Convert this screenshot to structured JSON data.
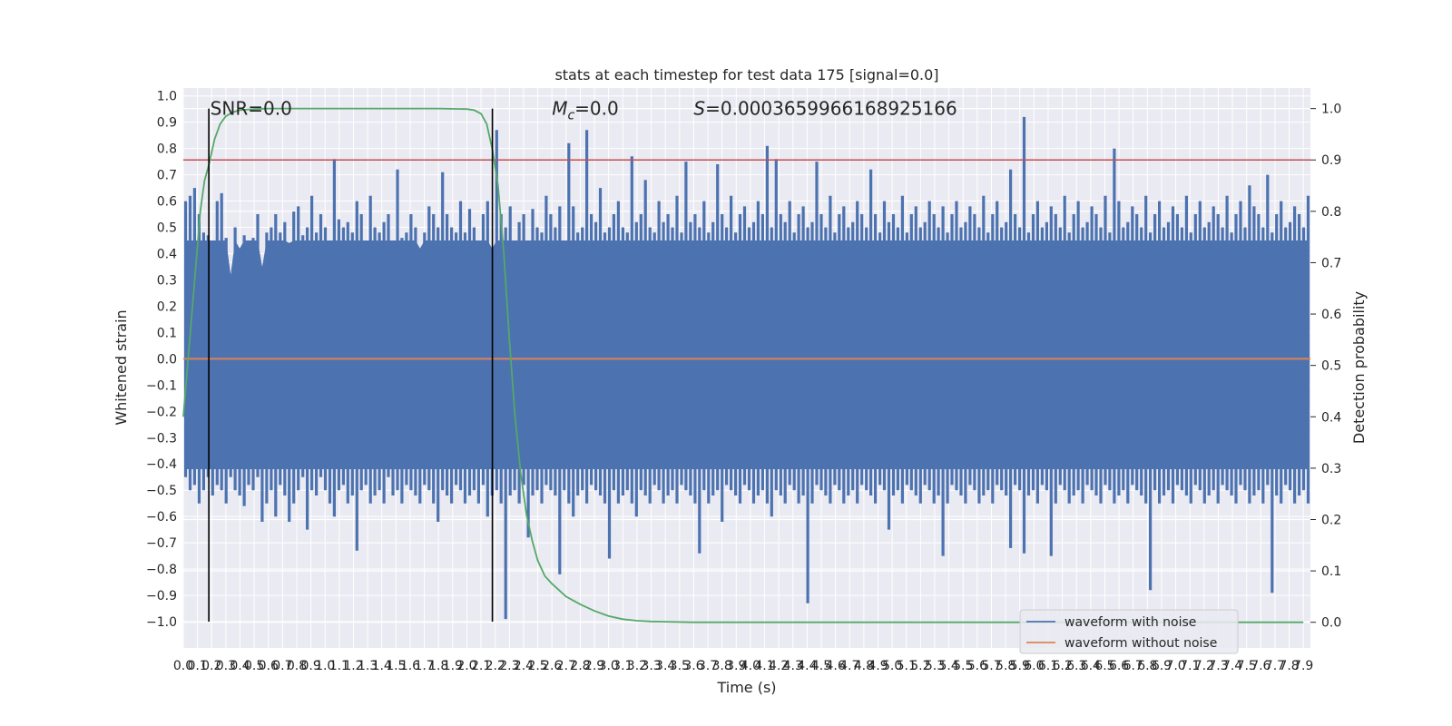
{
  "chart_data": {
    "type": "line",
    "title": "stats at each timestep for test data 175 [signal=0.0]",
    "xlabel": "Time (s)",
    "ylabel": "Whitened strain",
    "y2label": "Detection probability",
    "xlim": [
      0.0,
      7.95
    ],
    "ylim": [
      -1.1,
      1.03
    ],
    "y2lim": [
      -0.05,
      1.04
    ],
    "x_tick_step": 0.1,
    "x_tick_labels": [
      "0.0",
      "0.1",
      "0.2",
      "0.3",
      "0.4",
      "0.5",
      "0.6",
      "0.7",
      "0.8",
      "0.9",
      "1.0",
      "1.1",
      "1.2",
      "1.3",
      "1.4",
      "1.5",
      "1.6",
      "1.7",
      "1.8",
      "1.9",
      "2.0",
      "2.1",
      "2.2",
      "2.3",
      "2.4",
      "2.5",
      "2.6",
      "2.7",
      "2.8",
      "2.9",
      "3.0",
      "3.1",
      "3.2",
      "3.3",
      "3.4",
      "3.5",
      "3.6",
      "3.7",
      "3.8",
      "3.9",
      "4.0",
      "4.1",
      "4.2",
      "4.3",
      "4.4",
      "4.5",
      "4.6",
      "4.7",
      "4.8",
      "4.9",
      "5.0",
      "5.1",
      "5.2",
      "5.3",
      "5.4",
      "5.5",
      "5.6",
      "5.7",
      "5.8",
      "5.9",
      "6.0",
      "6.1",
      "6.2",
      "6.3",
      "6.4",
      "6.5",
      "6.6",
      "6.7",
      "6.8",
      "6.9",
      "7.0",
      "7.1",
      "7.2",
      "7.3",
      "7.4",
      "7.5",
      "7.6",
      "7.7",
      "7.8",
      "7.9"
    ],
    "y_tick_labels": [
      "1.0",
      "0.9",
      "0.8",
      "0.7",
      "0.6",
      "0.5",
      "0.4",
      "0.3",
      "0.2",
      "0.1",
      "0.0",
      "−0.1",
      "−0.2",
      "−0.3",
      "−0.4",
      "−0.5",
      "−0.6",
      "−0.7",
      "−0.8",
      "−0.9",
      "−1.0"
    ],
    "y_tick_values": [
      1.0,
      0.9,
      0.8,
      0.7,
      0.6,
      0.5,
      0.4,
      0.3,
      0.2,
      0.1,
      0.0,
      -0.1,
      -0.2,
      -0.3,
      -0.4,
      -0.5,
      -0.6,
      -0.7,
      -0.8,
      -0.9,
      -1.0
    ],
    "y2_tick_labels": [
      "1.0",
      "0.9",
      "0.8",
      "0.7",
      "0.6",
      "0.5",
      "0.4",
      "0.3",
      "0.2",
      "0.1",
      "0.0"
    ],
    "y2_tick_values": [
      1.0,
      0.9,
      0.8,
      0.7,
      0.6,
      0.5,
      0.4,
      0.3,
      0.2,
      0.1,
      0.0
    ],
    "grid": true,
    "legend_position": "lower-right",
    "annotations": [
      {
        "text": "SNR=0.0",
        "x": 0.19,
        "y": 0.955
      },
      {
        "text": "Mc=0.0",
        "x": 2.6,
        "y": 0.955
      },
      {
        "text": "S=0.0003659966168925166",
        "x": 3.6,
        "y": 0.955
      }
    ],
    "vertical_lines": [
      0.18,
      2.18
    ],
    "threshold_line": {
      "y2": 0.9,
      "color": "#c44e52"
    },
    "series": [
      {
        "name": "waveform with noise",
        "color": "#4c72b0",
        "axis": "left",
        "sample_step": 0.005,
        "envelope_upper": [
          0.6,
          0.62,
          0.65,
          0.55,
          0.48,
          0.47,
          0.45,
          0.6,
          0.63,
          0.46,
          0.32,
          0.5,
          0.42,
          0.47,
          0.45,
          0.46,
          0.55,
          0.35,
          0.48,
          0.5,
          0.55,
          0.48,
          0.52,
          0.44,
          0.56,
          0.58,
          0.47,
          0.5,
          0.62,
          0.48,
          0.55,
          0.5,
          0.45,
          0.76,
          0.53,
          0.5,
          0.52,
          0.48,
          0.6,
          0.55,
          0.45,
          0.62,
          0.5,
          0.48,
          0.52,
          0.55,
          0.45,
          0.72,
          0.46,
          0.48,
          0.55,
          0.5,
          0.42,
          0.48,
          0.58,
          0.55,
          0.5,
          0.71,
          0.55,
          0.5,
          0.48,
          0.6,
          0.48,
          0.57,
          0.5,
          0.45,
          0.55,
          0.6,
          0.42,
          0.87,
          0.55,
          0.5,
          0.58,
          0.45,
          0.52,
          0.55,
          0.45,
          0.57,
          0.5,
          0.48,
          0.62,
          0.55,
          0.5,
          0.58,
          0.45,
          0.82,
          0.58,
          0.48,
          0.5,
          0.87,
          0.55,
          0.52,
          0.65,
          0.48,
          0.5,
          0.55,
          0.6,
          0.5,
          0.48,
          0.77,
          0.52,
          0.55,
          0.68,
          0.5,
          0.48,
          0.6,
          0.52,
          0.55,
          0.5,
          0.62,
          0.48,
          0.75,
          0.52,
          0.55,
          0.5,
          0.6,
          0.48,
          0.52,
          0.74,
          0.55,
          0.5,
          0.62,
          0.48,
          0.55,
          0.58,
          0.5,
          0.52,
          0.6,
          0.55,
          0.81,
          0.5,
          0.76,
          0.55,
          0.52,
          0.6,
          0.48,
          0.55,
          0.58,
          0.5,
          0.52,
          0.75,
          0.55,
          0.5,
          0.62,
          0.48,
          0.55,
          0.58,
          0.5,
          0.52,
          0.6,
          0.55,
          0.5,
          0.72,
          0.55,
          0.48,
          0.6,
          0.52,
          0.55,
          0.5,
          0.62,
          0.48,
          0.55,
          0.58,
          0.5,
          0.52,
          0.6,
          0.55,
          0.5,
          0.58,
          0.48,
          0.55,
          0.6,
          0.5,
          0.52,
          0.58,
          0.55,
          0.5,
          0.62,
          0.48,
          0.55,
          0.6,
          0.5,
          0.52,
          0.72,
          0.55,
          0.5,
          0.92,
          0.48,
          0.55,
          0.6,
          0.5,
          0.52,
          0.58,
          0.55,
          0.5,
          0.62,
          0.48,
          0.55,
          0.6,
          0.5,
          0.52,
          0.58,
          0.55,
          0.5,
          0.62,
          0.48,
          0.8,
          0.6,
          0.5,
          0.52,
          0.58,
          0.55,
          0.5,
          0.62,
          0.48,
          0.55,
          0.6,
          0.5,
          0.52,
          0.58,
          0.55,
          0.5,
          0.62,
          0.48,
          0.55,
          0.6,
          0.5,
          0.52,
          0.58,
          0.55,
          0.5,
          0.62,
          0.48,
          0.55,
          0.6,
          0.5,
          0.66,
          0.58,
          0.55,
          0.5,
          0.7,
          0.48,
          0.55,
          0.6,
          0.5,
          0.52,
          0.58,
          0.55,
          0.5,
          0.62
        ],
        "envelope_lower": [
          -0.45,
          -0.5,
          -0.48,
          -0.55,
          -0.5,
          -0.45,
          -0.52,
          -0.48,
          -0.5,
          -0.55,
          -0.45,
          -0.5,
          -0.52,
          -0.56,
          -0.48,
          -0.5,
          -0.45,
          -0.62,
          -0.55,
          -0.5,
          -0.6,
          -0.48,
          -0.52,
          -0.62,
          -0.55,
          -0.5,
          -0.45,
          -0.65,
          -0.5,
          -0.52,
          -0.45,
          -0.5,
          -0.55,
          -0.6,
          -0.5,
          -0.48,
          -0.55,
          -0.52,
          -0.73,
          -0.5,
          -0.48,
          -0.55,
          -0.52,
          -0.5,
          -0.55,
          -0.45,
          -0.52,
          -0.5,
          -0.55,
          -0.48,
          -0.5,
          -0.52,
          -0.55,
          -0.48,
          -0.5,
          -0.55,
          -0.62,
          -0.5,
          -0.52,
          -0.55,
          -0.48,
          -0.5,
          -0.55,
          -0.52,
          -0.5,
          -0.55,
          -0.48,
          -0.6,
          -0.52,
          -0.5,
          -0.55,
          -0.99,
          -0.52,
          -0.5,
          -0.55,
          -0.48,
          -0.68,
          -0.52,
          -0.5,
          -0.55,
          -0.48,
          -0.5,
          -0.52,
          -0.82,
          -0.5,
          -0.55,
          -0.6,
          -0.52,
          -0.5,
          -0.55,
          -0.48,
          -0.5,
          -0.52,
          -0.55,
          -0.76,
          -0.5,
          -0.55,
          -0.52,
          -0.5,
          -0.55,
          -0.6,
          -0.5,
          -0.52,
          -0.55,
          -0.48,
          -0.5,
          -0.55,
          -0.52,
          -0.5,
          -0.55,
          -0.48,
          -0.5,
          -0.52,
          -0.55,
          -0.74,
          -0.5,
          -0.55,
          -0.52,
          -0.5,
          -0.62,
          -0.48,
          -0.5,
          -0.52,
          -0.55,
          -0.48,
          -0.5,
          -0.55,
          -0.52,
          -0.5,
          -0.55,
          -0.6,
          -0.5,
          -0.52,
          -0.55,
          -0.48,
          -0.5,
          -0.55,
          -0.52,
          -0.93,
          -0.55,
          -0.48,
          -0.5,
          -0.52,
          -0.55,
          -0.48,
          -0.5,
          -0.55,
          -0.52,
          -0.5,
          -0.55,
          -0.48,
          -0.5,
          -0.52,
          -0.55,
          -0.48,
          -0.5,
          -0.65,
          -0.52,
          -0.5,
          -0.55,
          -0.48,
          -0.5,
          -0.52,
          -0.55,
          -0.48,
          -0.5,
          -0.55,
          -0.52,
          -0.75,
          -0.55,
          -0.48,
          -0.5,
          -0.52,
          -0.55,
          -0.48,
          -0.5,
          -0.55,
          -0.52,
          -0.5,
          -0.55,
          -0.48,
          -0.5,
          -0.52,
          -0.72,
          -0.48,
          -0.5,
          -0.74,
          -0.52,
          -0.5,
          -0.55,
          -0.48,
          -0.5,
          -0.75,
          -0.55,
          -0.48,
          -0.5,
          -0.55,
          -0.52,
          -0.5,
          -0.55,
          -0.48,
          -0.5,
          -0.52,
          -0.55,
          -0.48,
          -0.5,
          -0.55,
          -0.52,
          -0.5,
          -0.55,
          -0.48,
          -0.5,
          -0.52,
          -0.55,
          -0.88,
          -0.5,
          -0.55,
          -0.52,
          -0.5,
          -0.55,
          -0.48,
          -0.5,
          -0.52,
          -0.55,
          -0.48,
          -0.5,
          -0.55,
          -0.52,
          -0.5,
          -0.55,
          -0.48,
          -0.5,
          -0.52,
          -0.55,
          -0.48,
          -0.5,
          -0.55,
          -0.52,
          -0.5,
          -0.55,
          -0.48,
          -0.89,
          -0.52,
          -0.55,
          -0.48,
          -0.5,
          -0.55,
          -0.52,
          -0.5,
          -0.55
        ]
      },
      {
        "name": "waveform without noise",
        "color": "#dd8452",
        "axis": "left",
        "x": [
          0.0,
          7.95
        ],
        "values": [
          0.0,
          0.0
        ]
      },
      {
        "name": "",
        "color": "#55a868",
        "axis": "right",
        "x": [
          0.0,
          0.03,
          0.06,
          0.09,
          0.12,
          0.15,
          0.18,
          0.22,
          0.26,
          0.3,
          0.35,
          0.4,
          0.5,
          0.6,
          0.8,
          1.0,
          1.4,
          1.8,
          2.0,
          2.05,
          2.1,
          2.14,
          2.18,
          2.22,
          2.26,
          2.3,
          2.34,
          2.38,
          2.42,
          2.46,
          2.5,
          2.55,
          2.6,
          2.7,
          2.8,
          2.9,
          3.0,
          3.1,
          3.2,
          3.3,
          3.4,
          3.6,
          4.0,
          5.0,
          6.0,
          7.9
        ],
        "values": [
          0.4,
          0.5,
          0.6,
          0.7,
          0.8,
          0.86,
          0.89,
          0.94,
          0.97,
          0.985,
          0.993,
          0.997,
          0.999,
          1.0,
          1.0,
          1.0,
          1.0,
          1.0,
          0.999,
          0.997,
          0.99,
          0.97,
          0.92,
          0.85,
          0.72,
          0.55,
          0.4,
          0.29,
          0.21,
          0.16,
          0.12,
          0.09,
          0.075,
          0.05,
          0.035,
          0.022,
          0.012,
          0.006,
          0.003,
          0.0015,
          0.001,
          0.0,
          0.0,
          0.0,
          0.0,
          0.0
        ]
      }
    ]
  }
}
